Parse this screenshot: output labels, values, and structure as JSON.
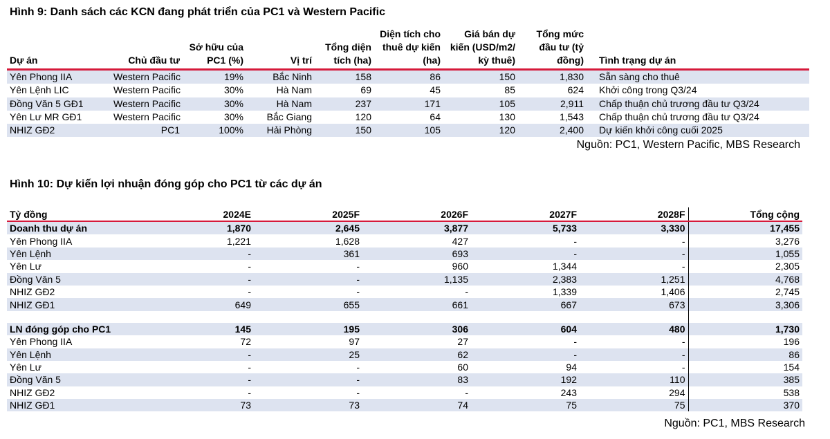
{
  "table1": {
    "title": "Hình 9: Danh sách các KCN đang phát triển của PC1 và Western Pacific",
    "headers": {
      "project": "Dự án",
      "investor": "Chủ đầu tư",
      "ownership": [
        "Sở hữu của",
        "PC1 (%)"
      ],
      "location": "Vị trí",
      "total_area": [
        "Tổng diện",
        "tích (ha)"
      ],
      "lease_area": [
        "Diện tích cho",
        "thuê dự kiến",
        "(ha)"
      ],
      "price": [
        "Giá bán dự",
        "kiến (USD/m2/",
        "kỳ thuê)"
      ],
      "investment": [
        "Tổng mức",
        "đầu tư (tỷ",
        "đồng)"
      ],
      "status": "Tình trạng dự án"
    },
    "rows": [
      {
        "project": "Yên Phong IIA",
        "investor": "Western Pacific",
        "ownership": "19%",
        "location": "Bắc Ninh",
        "total_area": "158",
        "lease_area": "86",
        "price": "150",
        "investment": "1,830",
        "status": "Sẵn sàng cho thuê"
      },
      {
        "project": "Yên Lệnh LIC",
        "investor": "Western Pacific",
        "ownership": "30%",
        "location": "Hà Nam",
        "total_area": "69",
        "lease_area": "45",
        "price": "85",
        "investment": "624",
        "status": "Khởi công trong Q3/24"
      },
      {
        "project": "Đồng Văn 5 GĐ1",
        "investor": "Western Pacific",
        "ownership": "30%",
        "location": "Hà Nam",
        "total_area": "237",
        "lease_area": "171",
        "price": "105",
        "investment": "2,911",
        "status": "Chấp thuận chủ trương đầu tư Q3/24"
      },
      {
        "project": "Yên Lư MR GĐ1",
        "investor": "Western Pacific",
        "ownership": "30%",
        "location": "Bắc Giang",
        "total_area": "120",
        "lease_area": "64",
        "price": "130",
        "investment": "1,543",
        "status": "Chấp thuận chủ trương đầu tư Q3/24"
      },
      {
        "project": "NHIZ GĐ2",
        "investor": "PC1",
        "ownership": "100%",
        "location": "Hải Phòng",
        "total_area": "150",
        "lease_area": "105",
        "price": "120",
        "investment": "2,400",
        "status": "Dự kiến khởi công cuối 2025"
      }
    ],
    "source": "Nguồn: PC1, Western Pacific, MBS Research"
  },
  "table2": {
    "title": "Hình 10: Dự kiến lợi nhuận đóng góp cho PC1 từ các dự án",
    "headers": [
      "Tỷ đồng",
      "2024E",
      "2025F",
      "2026F",
      "2027F",
      "2028F",
      "Tổng cộng"
    ],
    "rows": [
      {
        "cells": [
          "Doanh thu dự án",
          "1,870",
          "2,645",
          "3,877",
          "5,733",
          "3,330",
          "17,455"
        ],
        "bold": true
      },
      {
        "cells": [
          "Yên Phong IIA",
          "1,221",
          "1,628",
          "427",
          "-",
          "-",
          "3,276"
        ]
      },
      {
        "cells": [
          "Yên Lệnh",
          "-",
          "361",
          "693",
          "-",
          "-",
          "1,055"
        ]
      },
      {
        "cells": [
          "Yên Lư",
          "-",
          "-",
          "960",
          "1,344",
          "-",
          "2,305"
        ]
      },
      {
        "cells": [
          "Đồng Văn 5",
          "-",
          "-",
          "1,135",
          "2,383",
          "1,251",
          "4,768"
        ]
      },
      {
        "cells": [
          "NHIZ GĐ2",
          "-",
          "-",
          "-",
          "1,339",
          "1,406",
          "2,745"
        ]
      },
      {
        "cells": [
          "NHIZ GĐ1",
          "649",
          "655",
          "661",
          "667",
          "673",
          "3,306"
        ]
      },
      {
        "cells": [
          "LN đóng góp cho PC1",
          "145",
          "195",
          "306",
          "604",
          "480",
          "1,730"
        ],
        "bold": true
      },
      {
        "cells": [
          "Yên Phong IIA",
          "72",
          "97",
          "27",
          "-",
          "-",
          "196"
        ]
      },
      {
        "cells": [
          "Yên Lệnh",
          "-",
          "25",
          "62",
          "-",
          "-",
          "86"
        ]
      },
      {
        "cells": [
          "Yên Lư",
          "-",
          "-",
          "60",
          "94",
          "-",
          "154"
        ]
      },
      {
        "cells": [
          "Đồng Văn 5",
          "-",
          "-",
          "83",
          "192",
          "110",
          "385"
        ]
      },
      {
        "cells": [
          "NHIZ GĐ2",
          "-",
          "-",
          "-",
          "243",
          "294",
          "538"
        ]
      },
      {
        "cells": [
          "NHIZ GĐ1",
          "73",
          "73",
          "74",
          "75",
          "75",
          "370"
        ]
      }
    ],
    "source": "Nguồn: PC1, MBS Research"
  }
}
